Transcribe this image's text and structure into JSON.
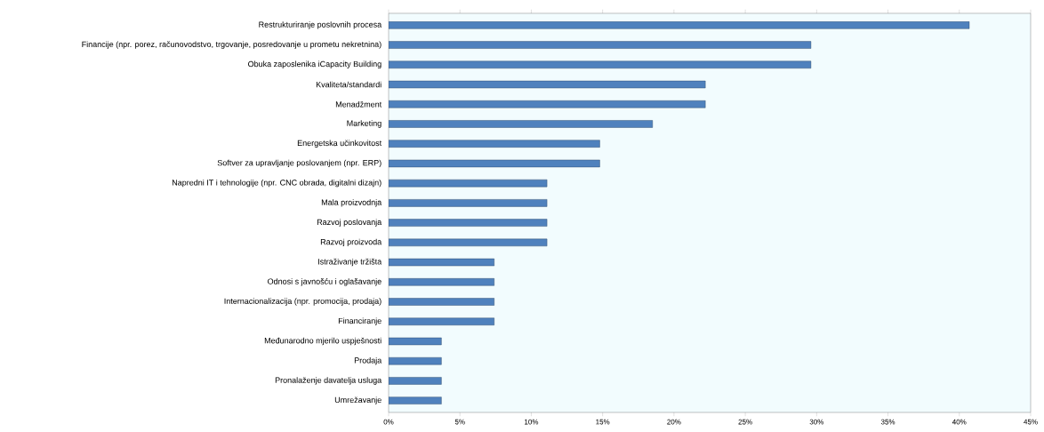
{
  "chart_data": {
    "type": "bar",
    "orientation": "horizontal",
    "categories": [
      "Restrukturiranje poslovnih procesa",
      "Financije (npr. porez, računovodstvo, trgovanje, posredovanje u prometu nekretnina)",
      "Obuka zaposlenika iCapacity Building",
      "Kvaliteta/standardi",
      "Menadžment",
      "Marketing",
      "Energetska učinkovitost",
      "Softver za upravljanje poslovanjem (npr. ERP)",
      "Napredni IT i tehnologije (npr. CNC obrada, digitalni dizajn)",
      "Mala proizvodnja",
      "Razvoj poslovanja",
      "Razvoj proizvoda",
      "Istraživanje tržišta",
      "Odnosi s javnošću i oglašavanje",
      "Internacionalizacija (npr. promocija, prodaja)",
      "Financiranje",
      "Međunarodno mjerilo uspješnosti",
      "Prodaja",
      "Pronalaženje davatelja usluga",
      "Umrežavanje"
    ],
    "values": [
      40.7,
      29.6,
      29.6,
      22.2,
      22.2,
      18.5,
      14.8,
      14.8,
      11.1,
      11.1,
      11.1,
      11.1,
      7.4,
      7.4,
      7.4,
      7.4,
      3.7,
      3.7,
      3.7,
      3.7
    ],
    "color": "#4f81bd",
    "xlim": [
      0,
      45
    ],
    "xticks": [
      {
        "value": 0,
        "label": "0%"
      },
      {
        "value": 5,
        "label": "5%"
      },
      {
        "value": 10,
        "label": "10%"
      },
      {
        "value": 15,
        "label": "15%"
      },
      {
        "value": 20,
        "label": "20%"
      },
      {
        "value": 25,
        "label": "25%"
      },
      {
        "value": 30,
        "label": "30%"
      },
      {
        "value": 35,
        "label": "35%"
      },
      {
        "value": 40,
        "label": "40%"
      },
      {
        "value": 45,
        "label": "45%"
      }
    ],
    "grid": false
  }
}
